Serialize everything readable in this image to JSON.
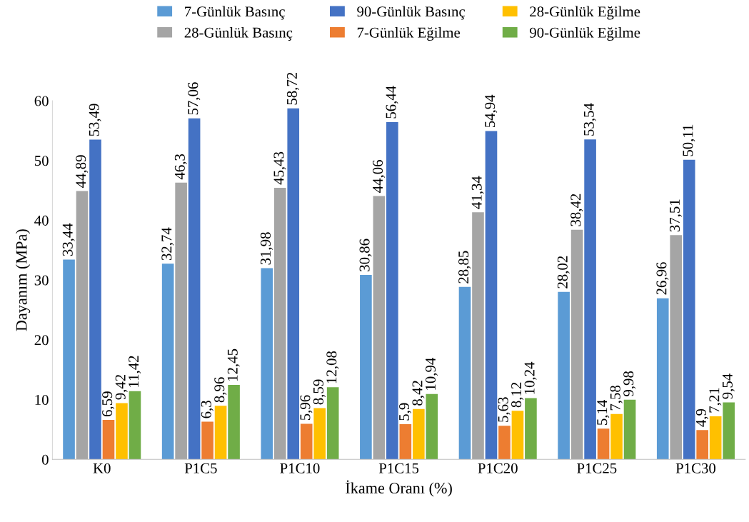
{
  "chart_data": {
    "type": "bar",
    "xlabel": "İkame Oranı (%)",
    "ylabel": "Dayanım (MPa)",
    "categories": [
      "K0",
      "P1C5",
      "P1C10",
      "P1C15",
      "P1C20",
      "P1C25",
      "P1C30"
    ],
    "series": [
      {
        "name": "7-Günlük Basınç",
        "color": "#5b9bd5",
        "values": [
          33.44,
          32.74,
          31.98,
          30.86,
          28.85,
          28.02,
          26.96
        ],
        "value_labels": [
          "33,44",
          "32,74",
          "31,98",
          "30,86",
          "28,85",
          "28,02",
          "26,96"
        ]
      },
      {
        "name": "28-Günlük Basınç",
        "color": "#a5a5a5",
        "values": [
          44.89,
          46.3,
          45.43,
          44.06,
          41.34,
          38.42,
          37.51
        ],
        "value_labels": [
          "44,89",
          "46,3",
          "45,43",
          "44,06",
          "41,34",
          "38,42",
          "37,51"
        ]
      },
      {
        "name": "90-Günlük Basınç",
        "color": "#4472c4",
        "values": [
          53.49,
          57.06,
          58.72,
          56.44,
          54.94,
          53.54,
          50.11
        ],
        "value_labels": [
          "53,49",
          "57,06",
          "58,72",
          "56,44",
          "54,94",
          "53,54",
          "50,11"
        ]
      },
      {
        "name": "7-Günlük Eğilme",
        "color": "#ed7d31",
        "values": [
          6.59,
          6.3,
          5.96,
          5.9,
          5.63,
          5.14,
          4.9
        ],
        "value_labels": [
          "6,59",
          "6,3",
          "5,96",
          "5,9",
          "5,63",
          "5,14",
          "4,9"
        ]
      },
      {
        "name": "28-Günlük Eğilme",
        "color": "#ffc000",
        "values": [
          9.42,
          8.96,
          8.59,
          8.42,
          8.12,
          7.58,
          7.21
        ],
        "value_labels": [
          "9,42",
          "8,96",
          "8,59",
          "8,42",
          "8,12",
          "7,58",
          "7,21"
        ]
      },
      {
        "name": "90-Günlük Eğilme",
        "color": "#70ad47",
        "values": [
          11.42,
          12.45,
          12.08,
          10.94,
          10.24,
          9.98,
          9.54
        ],
        "value_labels": [
          "11,42",
          "12,45",
          "12,08",
          "10,94",
          "10,24",
          "9,98",
          "9,54"
        ]
      }
    ],
    "ylim": [
      0,
      60
    ],
    "yticks": [
      0,
      10,
      20,
      30,
      40,
      50,
      60
    ],
    "grid": false,
    "legend": "top"
  }
}
